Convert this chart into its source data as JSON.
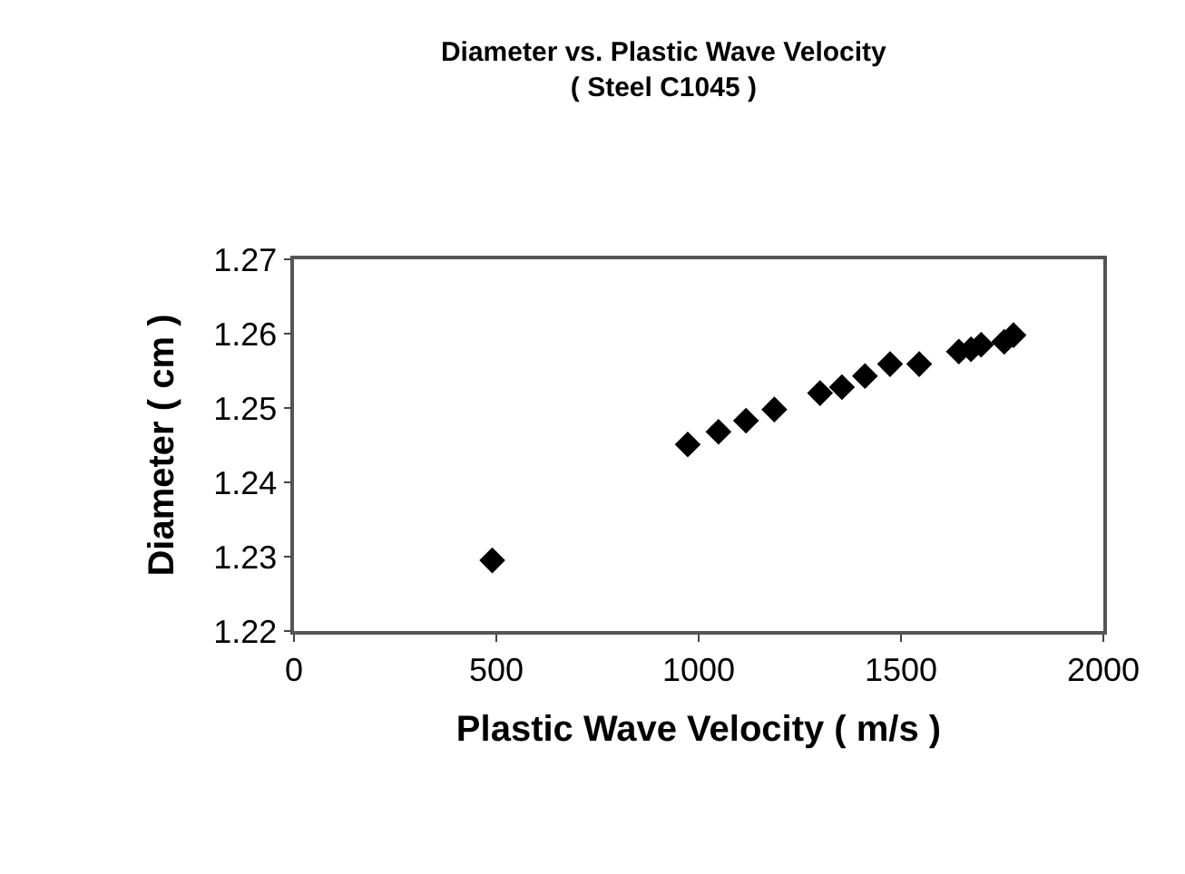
{
  "chart_data": {
    "type": "scatter",
    "title": "Diameter vs. Plastic Wave Velocity\n( Steel C1045 )",
    "xlabel": "Plastic Wave Velocity ( m/s )",
    "ylabel": "Diameter ( cm )",
    "x": [
      490,
      973,
      1049,
      1117,
      1187,
      1300,
      1354,
      1411,
      1473,
      1545,
      1643,
      1673,
      1698,
      1755,
      1778
    ],
    "values": [
      1.2295,
      1.2451,
      1.2468,
      1.2483,
      1.2498,
      1.252,
      1.2528,
      1.2543,
      1.2559,
      1.2559,
      1.2576,
      1.2579,
      1.2585,
      1.2589,
      1.2598
    ],
    "color": "#000000",
    "marker": "diamond",
    "xlim": [
      0,
      2000
    ],
    "xticks": [
      0,
      500,
      1000,
      1500,
      2000
    ],
    "ylim": [
      1.22,
      1.27
    ],
    "yticks": [
      1.22,
      1.23,
      1.24,
      1.25,
      1.26,
      1.27
    ],
    "grid": false,
    "legend": false
  }
}
